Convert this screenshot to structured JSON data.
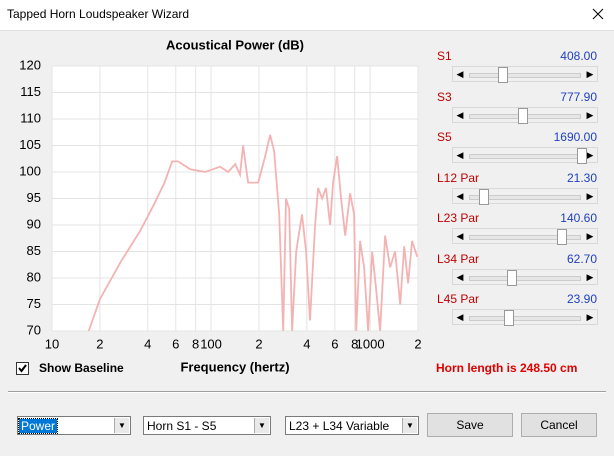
{
  "window": {
    "title": "Tapped Horn Loudspeaker Wizard"
  },
  "chart_data": {
    "type": "line",
    "title": "Acoustical Power (dB)",
    "x_label": "Frequency (hertz)",
    "log_x": true,
    "grid": true,
    "color": "#f4b3b3",
    "xlim": [
      10,
      2000
    ],
    "ylim": [
      70,
      120
    ],
    "xticks": [
      10,
      {
        "value": 20,
        "label": "2"
      },
      {
        "value": 40,
        "label": "4"
      },
      {
        "value": 60,
        "label": "6"
      },
      {
        "value": 80,
        "label": "8"
      },
      100,
      {
        "value": 200,
        "label": "2"
      },
      {
        "value": 400,
        "label": "4"
      },
      {
        "value": 600,
        "label": "6"
      },
      {
        "value": 800,
        "label": "8"
      },
      1000,
      {
        "value": 2000,
        "label": "2"
      }
    ],
    "yticks": [
      70,
      75,
      80,
      85,
      90,
      95,
      100,
      105,
      110,
      115,
      120
    ],
    "x": [
      17,
      20,
      27,
      36,
      44,
      51,
      57,
      62,
      74,
      92,
      114,
      128,
      142,
      152,
      159,
      171,
      198,
      219,
      235,
      249,
      268,
      284,
      296,
      310,
      323,
      343,
      373,
      396,
      419,
      451,
      471,
      499,
      528,
      560,
      585,
      620,
      657,
      697,
      748,
      793,
      817,
      865,
      917,
      971,
      1030,
      1091,
      1156,
      1243,
      1336,
      1435,
      1545,
      1637,
      1734,
      1837,
      1977
    ],
    "values": [
      70,
      76,
      83,
      89,
      94,
      98,
      102,
      102,
      100.5,
      100,
      101,
      100,
      101.5,
      99.5,
      105,
      98,
      98,
      103,
      107,
      104,
      92,
      70,
      95,
      93,
      70,
      85,
      92,
      85,
      72,
      90,
      97,
      95,
      97,
      90,
      98,
      103,
      95,
      88,
      96,
      92,
      70,
      87,
      82,
      70,
      85,
      78,
      70,
      88,
      82,
      85,
      75,
      86,
      79,
      87,
      84
    ]
  },
  "parameters": [
    {
      "label": "S1",
      "value": "408.00"
    },
    {
      "label": "S3",
      "value": "777.90"
    },
    {
      "label": "S5",
      "value": "1690.00"
    },
    {
      "label": "L12  Par",
      "value": "21.30"
    },
    {
      "label": "L23  Par",
      "value": "140.60"
    },
    {
      "label": "L34  Par",
      "value": "62.70"
    },
    {
      "label": "L45  Par",
      "value": "23.90"
    }
  ],
  "show_baseline": {
    "label": "Show Baseline",
    "checked": true
  },
  "horn_length": "Horn length is 248.50 cm",
  "dropdowns": [
    "Power",
    "Horn S1 - S5",
    "L23 + L34 Variable"
  ],
  "buttons": [
    "Save",
    "Cancel"
  ]
}
